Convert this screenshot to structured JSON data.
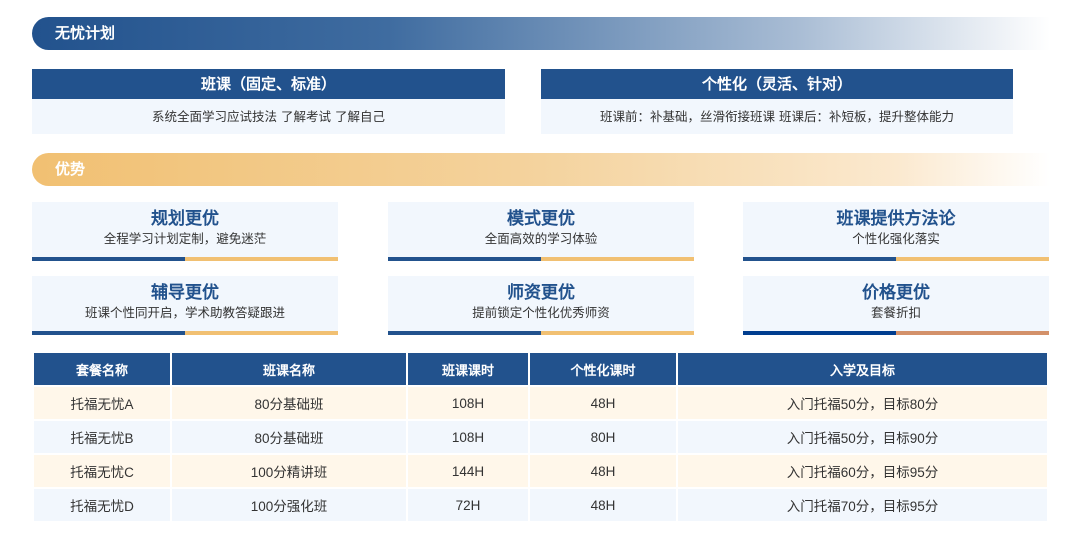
{
  "plan": {
    "title": "无忧计划",
    "items": [
      {
        "title": "班课（固定、标准）",
        "desc": "系统全面学习应试技法  了解考试 了解自己"
      },
      {
        "title": "个性化（灵活、针对）",
        "desc": "班课前：补基础，丝滑衔接班课  班课后：补短板，提升整体能力"
      }
    ]
  },
  "advantages": {
    "title": "优势",
    "cards": [
      {
        "title": "规划更优",
        "desc": "全程学习计划定制，避免迷茫"
      },
      {
        "title": "模式更优",
        "desc": "全面高效的学习体验"
      },
      {
        "title": "班课提供方法论",
        "desc": "个性化强化落实"
      },
      {
        "title": "辅导更优",
        "desc": "班课个性同开启，学术助教答疑跟进"
      },
      {
        "title": "师资更优",
        "desc": "提前锁定个性化优秀师资"
      },
      {
        "title": "价格更优",
        "desc": "套餐折扣"
      }
    ]
  },
  "colors": {
    "primary": "#22528d",
    "accent": "#f1c072",
    "price_left": "#003d8f",
    "price_right": "#d3916a"
  },
  "table": {
    "headers": [
      "套餐名称",
      "班课名称",
      "班课课时",
      "个性化课时",
      "入学及目标"
    ],
    "rows": [
      [
        "托福无忧A",
        "80分基础班",
        "108H",
        "48H",
        "入门托福50分，目标80分"
      ],
      [
        "托福无忧B",
        "80分基础班",
        "108H",
        "80H",
        "入门托福50分，目标90分"
      ],
      [
        "托福无忧C",
        "100分精讲班",
        "144H",
        "48H",
        "入门托福60分，目标95分"
      ],
      [
        "托福无忧D",
        "100分强化班",
        "72H",
        "48H",
        "入门托福70分，目标95分"
      ]
    ]
  }
}
